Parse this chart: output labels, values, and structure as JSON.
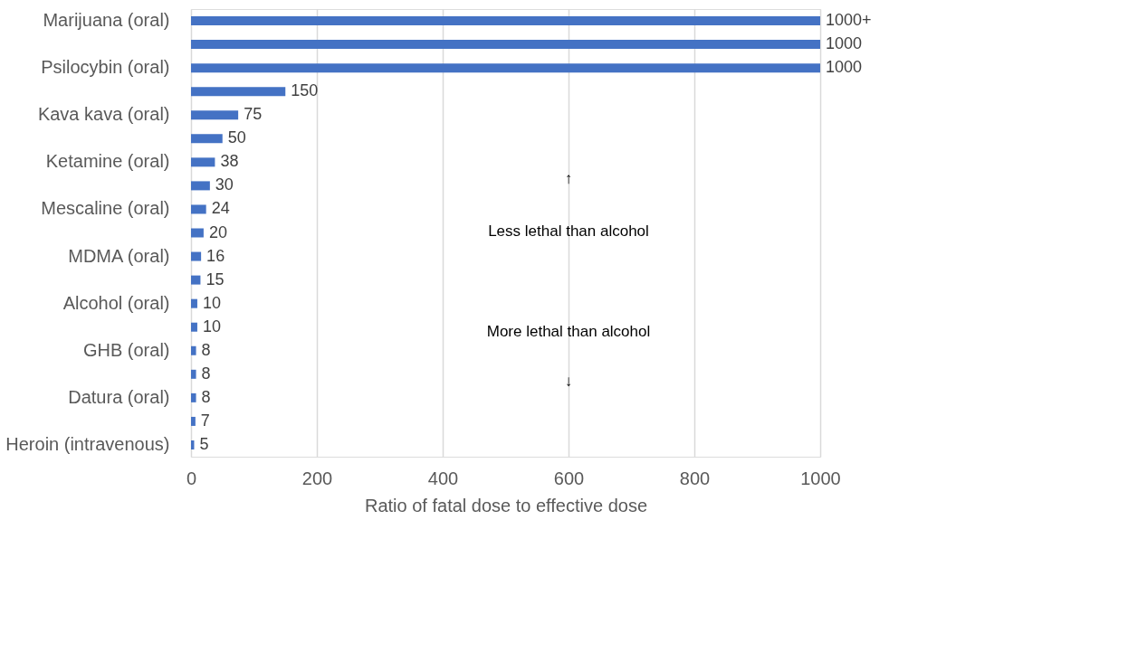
{
  "chart_data": {
    "type": "bar",
    "orientation": "horizontal",
    "xlabel": "Ratio of fatal dose to effective dose",
    "categories": [
      "Marijuana (oral)",
      null,
      "Psilocybin (oral)",
      null,
      "Kava kava (oral)",
      null,
      "Ketamine (oral)",
      null,
      "Mescaline (oral)",
      null,
      "MDMA (oral)",
      null,
      "Alcohol (oral)",
      null,
      "GHB (oral)",
      null,
      "Datura (oral)",
      null,
      "Heroin (intravenous)"
    ],
    "values": [
      1000,
      1000,
      1000,
      150,
      75,
      50,
      38,
      30,
      24,
      20,
      16,
      15,
      10,
      10,
      8,
      8,
      8,
      7,
      5
    ],
    "value_labels": [
      "1000+",
      "1000",
      "1000",
      "150",
      "75",
      "50",
      "38",
      "30",
      "24",
      "20",
      "16",
      "15",
      "10",
      "10",
      "8",
      "8",
      "8",
      "7",
      "5"
    ],
    "color": "#4472c4",
    "xlim": [
      0,
      1000
    ],
    "xticks": [
      0,
      200,
      400,
      600,
      800,
      1000
    ],
    "grid": "x",
    "annotations": [
      "↑",
      "Less lethal than alcohol",
      "More lethal than alcohol",
      "↓"
    ]
  }
}
